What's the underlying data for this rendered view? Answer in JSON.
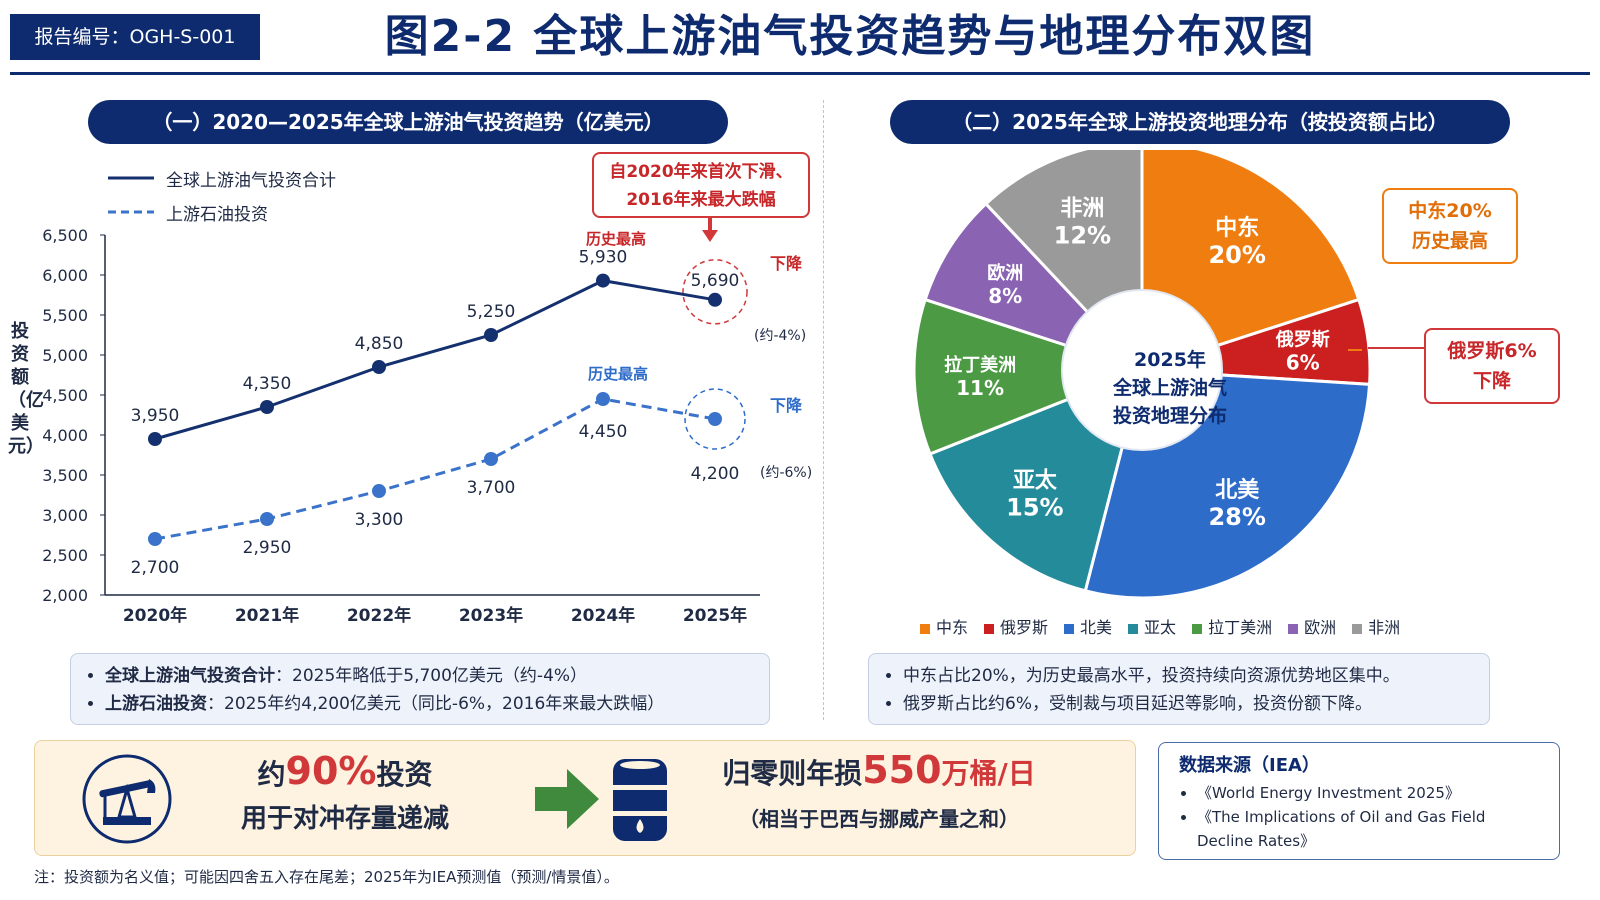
{
  "header": {
    "report_code": "报告编号：OGH-S-001",
    "title": "图2-2  全球上游油气投资趋势与地理分布双图"
  },
  "left_panel": {
    "title": "（一）2020—2025年全球上游油气投资趋势（亿美元）",
    "legend_total": "全球上游油气投资合计",
    "legend_oil": "上游石油投资",
    "y_axis_label": "投资额（亿美元）",
    "callout_top": "自2020年来首次下滑、\n2016年来最大跌幅",
    "callout_top_line1": "自2020年来首次下滑、",
    "callout_top_line2": "2016年来最大跌幅",
    "peak_label_total": "历史最高",
    "peak_label_oil": "历史最高",
    "decline_label_total": "下降",
    "decline_label_oil": "下降",
    "pct_total": "(约-4%)",
    "pct_oil": "(约-6%)",
    "notes": [
      {
        "bold": "全球上游油气投资合计",
        "text": "：2025年略低于5,700亿美元（约-4%）"
      },
      {
        "bold": "上游石油投资",
        "text": "：2025年约4,200亿美元（同比-6%，2016年来最大跌幅）"
      }
    ]
  },
  "right_panel": {
    "title": "（二）2025年全球上游投资地理分布（按投资额占比）",
    "center_line1": "2025年",
    "center_line2": "全球上游油气",
    "center_line3": "投资地理分布",
    "callout_me_line1": "中东20%",
    "callout_me_line2": "历史最高",
    "callout_ru_line1": "俄罗斯6%",
    "callout_ru_line2": "下降",
    "notes": [
      "中东占比20%，为历史最高水平，投资持续向资源优势地区集中。",
      "俄罗斯占比约6%，受制裁与项目延迟等影响，投资份额下降。"
    ]
  },
  "bottom": {
    "left_line1_pre": "约",
    "left_line1_num": "90%",
    "left_line1_post": "投资",
    "left_line2": "用于对冲存量递减",
    "right_line1_pre": "归零则年损",
    "right_line1_num": "550",
    "right_line1_post": "万桶/日",
    "right_line2": "（相当于巴西与挪威产量之和）"
  },
  "source": {
    "title": "数据来源（IEA）",
    "items": [
      "《World Energy Investment 2025》",
      "《The Implications of Oil and Gas Field Decline Rates》"
    ]
  },
  "footnote": "注：投资额为名义值；可能因四舍五入存在尾差；2025年为IEA预测值（预测/情景值）。",
  "colors": {
    "navy": "#0d2b6e",
    "total_line": "#14306e",
    "oil_line": "#3a73c9",
    "red": "#d0383a",
    "orange": "#f07d10"
  },
  "chart_data": [
    {
      "type": "line",
      "title": "（一）2020—2025年全球上游油气投资趋势（亿美元）",
      "xlabel": "",
      "ylabel": "投资额（亿美元）",
      "categories": [
        "2020年",
        "2021年",
        "2022年",
        "2023年",
        "2024年",
        "2025年"
      ],
      "ylim": [
        2000,
        6500
      ],
      "yticks": [
        2000,
        2500,
        3000,
        3500,
        4000,
        4500,
        5000,
        5500,
        6000,
        6500
      ],
      "ytick_labels": [
        "2,000",
        "2,500",
        "3,000",
        "3,500",
        "4,000",
        "4,500",
        "5,000",
        "5,500",
        "6,000",
        "6,500"
      ],
      "series": [
        {
          "name": "全球上游油气投资合计",
          "values": [
            3950,
            4350,
            4850,
            5250,
            5930,
            5690
          ],
          "labels": [
            "3,950",
            "4,350",
            "4,850",
            "5,250",
            "5,930",
            "5,690"
          ],
          "style": "solid",
          "color": "#14306e"
        },
        {
          "name": "上游石油投资",
          "values": [
            2700,
            2950,
            3300,
            3700,
            4450,
            4200
          ],
          "labels": [
            "2,700",
            "2,950",
            "3,300",
            "3,700",
            "4,450",
            "4,200"
          ],
          "style": "dashed",
          "color": "#3a73c9"
        }
      ],
      "legend": "top-left",
      "grid": false
    },
    {
      "type": "pie",
      "title": "（二）2025年全球上游投资地理分布（按投资额占比）",
      "slices": [
        {
          "name": "中东",
          "value": 20,
          "label": "20%",
          "color": "#f07d10"
        },
        {
          "name": "俄罗斯",
          "value": 6,
          "label": "6%",
          "color": "#cc1f1f"
        },
        {
          "name": "北美",
          "value": 28,
          "label": "28%",
          "color": "#2e6cc9"
        },
        {
          "name": "亚太",
          "value": 15,
          "label": "15%",
          "color": "#238b9a"
        },
        {
          "name": "拉丁美洲",
          "value": 11,
          "label": "11%",
          "color": "#4d9a45"
        },
        {
          "name": "欧洲",
          "value": 8,
          "label": "8%",
          "color": "#8a63b2"
        },
        {
          "name": "非洲",
          "value": 12,
          "label": "12%",
          "color": "#9a9a9a"
        }
      ],
      "legend": "bottom"
    }
  ]
}
